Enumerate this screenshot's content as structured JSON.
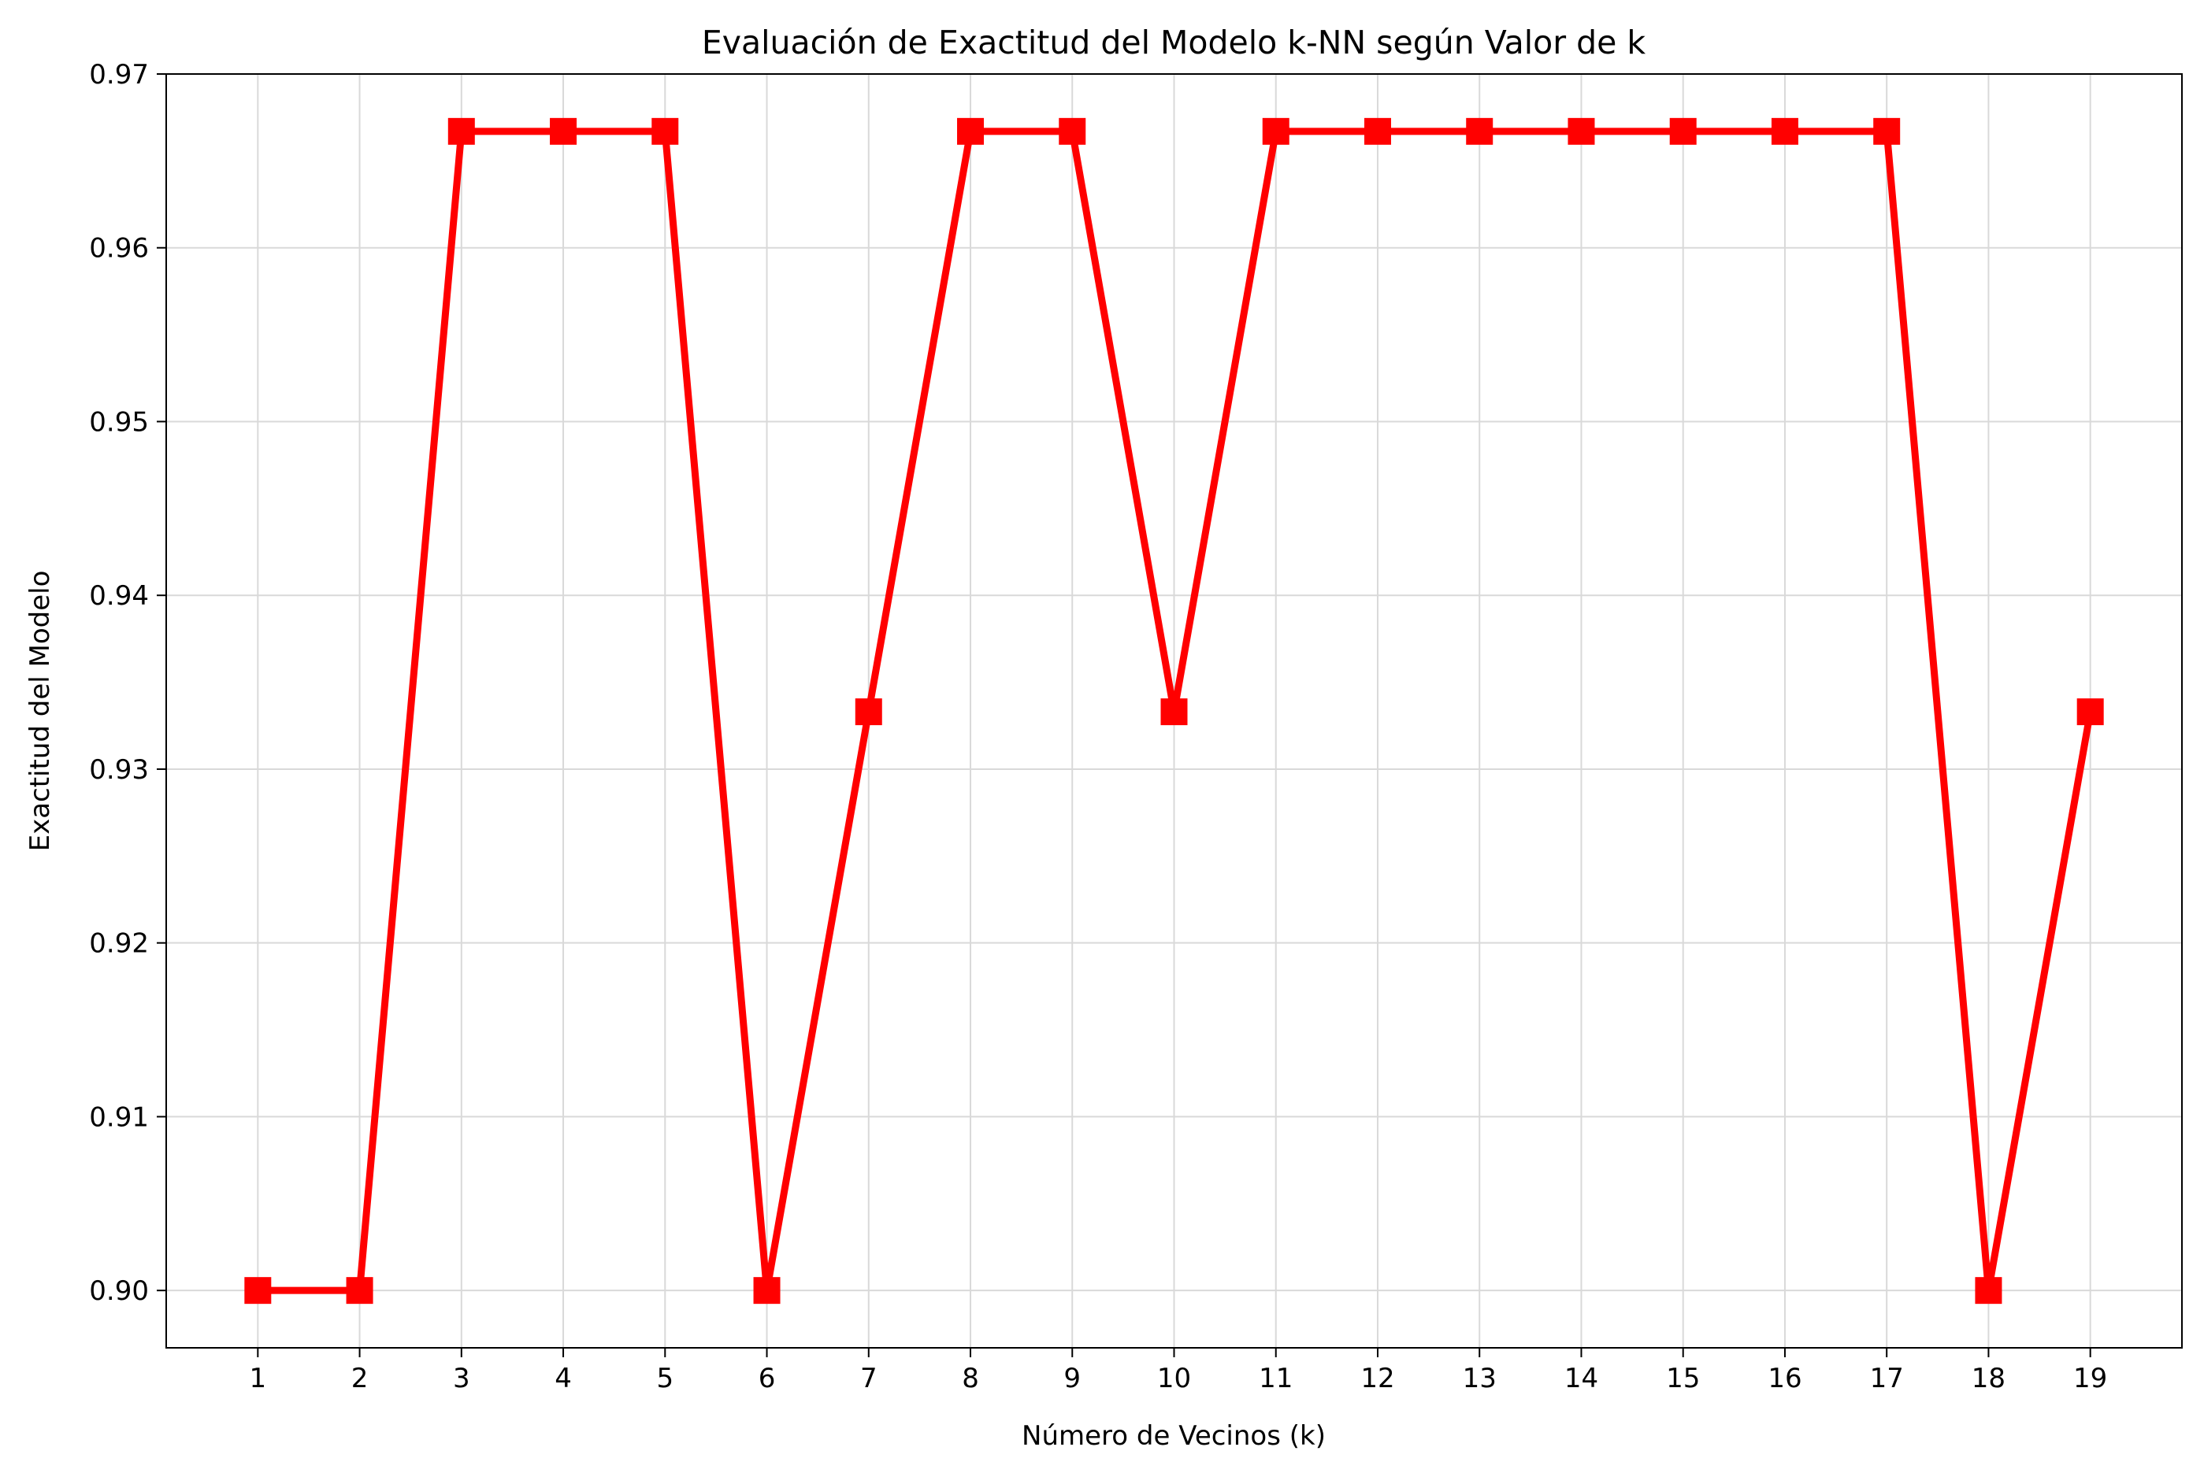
{
  "chart_data": {
    "type": "line",
    "title": "Evaluación de Exactitud del Modelo k-NN según Valor de k",
    "xlabel": "Número de Vecinos (k)",
    "ylabel": "Exactitud del Modelo",
    "x": [
      1,
      2,
      3,
      4,
      5,
      6,
      7,
      8,
      9,
      10,
      11,
      12,
      13,
      14,
      15,
      16,
      17,
      18,
      19
    ],
    "x_tick_labels": [
      "1",
      "2",
      "3",
      "4",
      "5",
      "6",
      "7",
      "8",
      "9",
      "10",
      "11",
      "12",
      "13",
      "14",
      "15",
      "16",
      "17",
      "18",
      "19"
    ],
    "y_tick_values": [
      0.9,
      0.91,
      0.92,
      0.93,
      0.94,
      0.95,
      0.96,
      0.97
    ],
    "y_tick_labels": [
      "0.90",
      "0.91",
      "0.92",
      "0.93",
      "0.94",
      "0.95",
      "0.96",
      "0.97"
    ],
    "xlim": [
      0.1,
      19.9
    ],
    "ylim": [
      0.8967,
      0.97
    ],
    "grid": true,
    "legend": "none",
    "series": [
      {
        "values": [
          0.9,
          0.9,
          0.9667,
          0.9667,
          0.9667,
          0.9,
          0.9333,
          0.9667,
          0.9667,
          0.9333,
          0.9667,
          0.9667,
          0.9667,
          0.9667,
          0.9667,
          0.9667,
          0.9667,
          0.9,
          0.9333
        ],
        "color": "#ff0000",
        "marker": "square"
      }
    ]
  }
}
